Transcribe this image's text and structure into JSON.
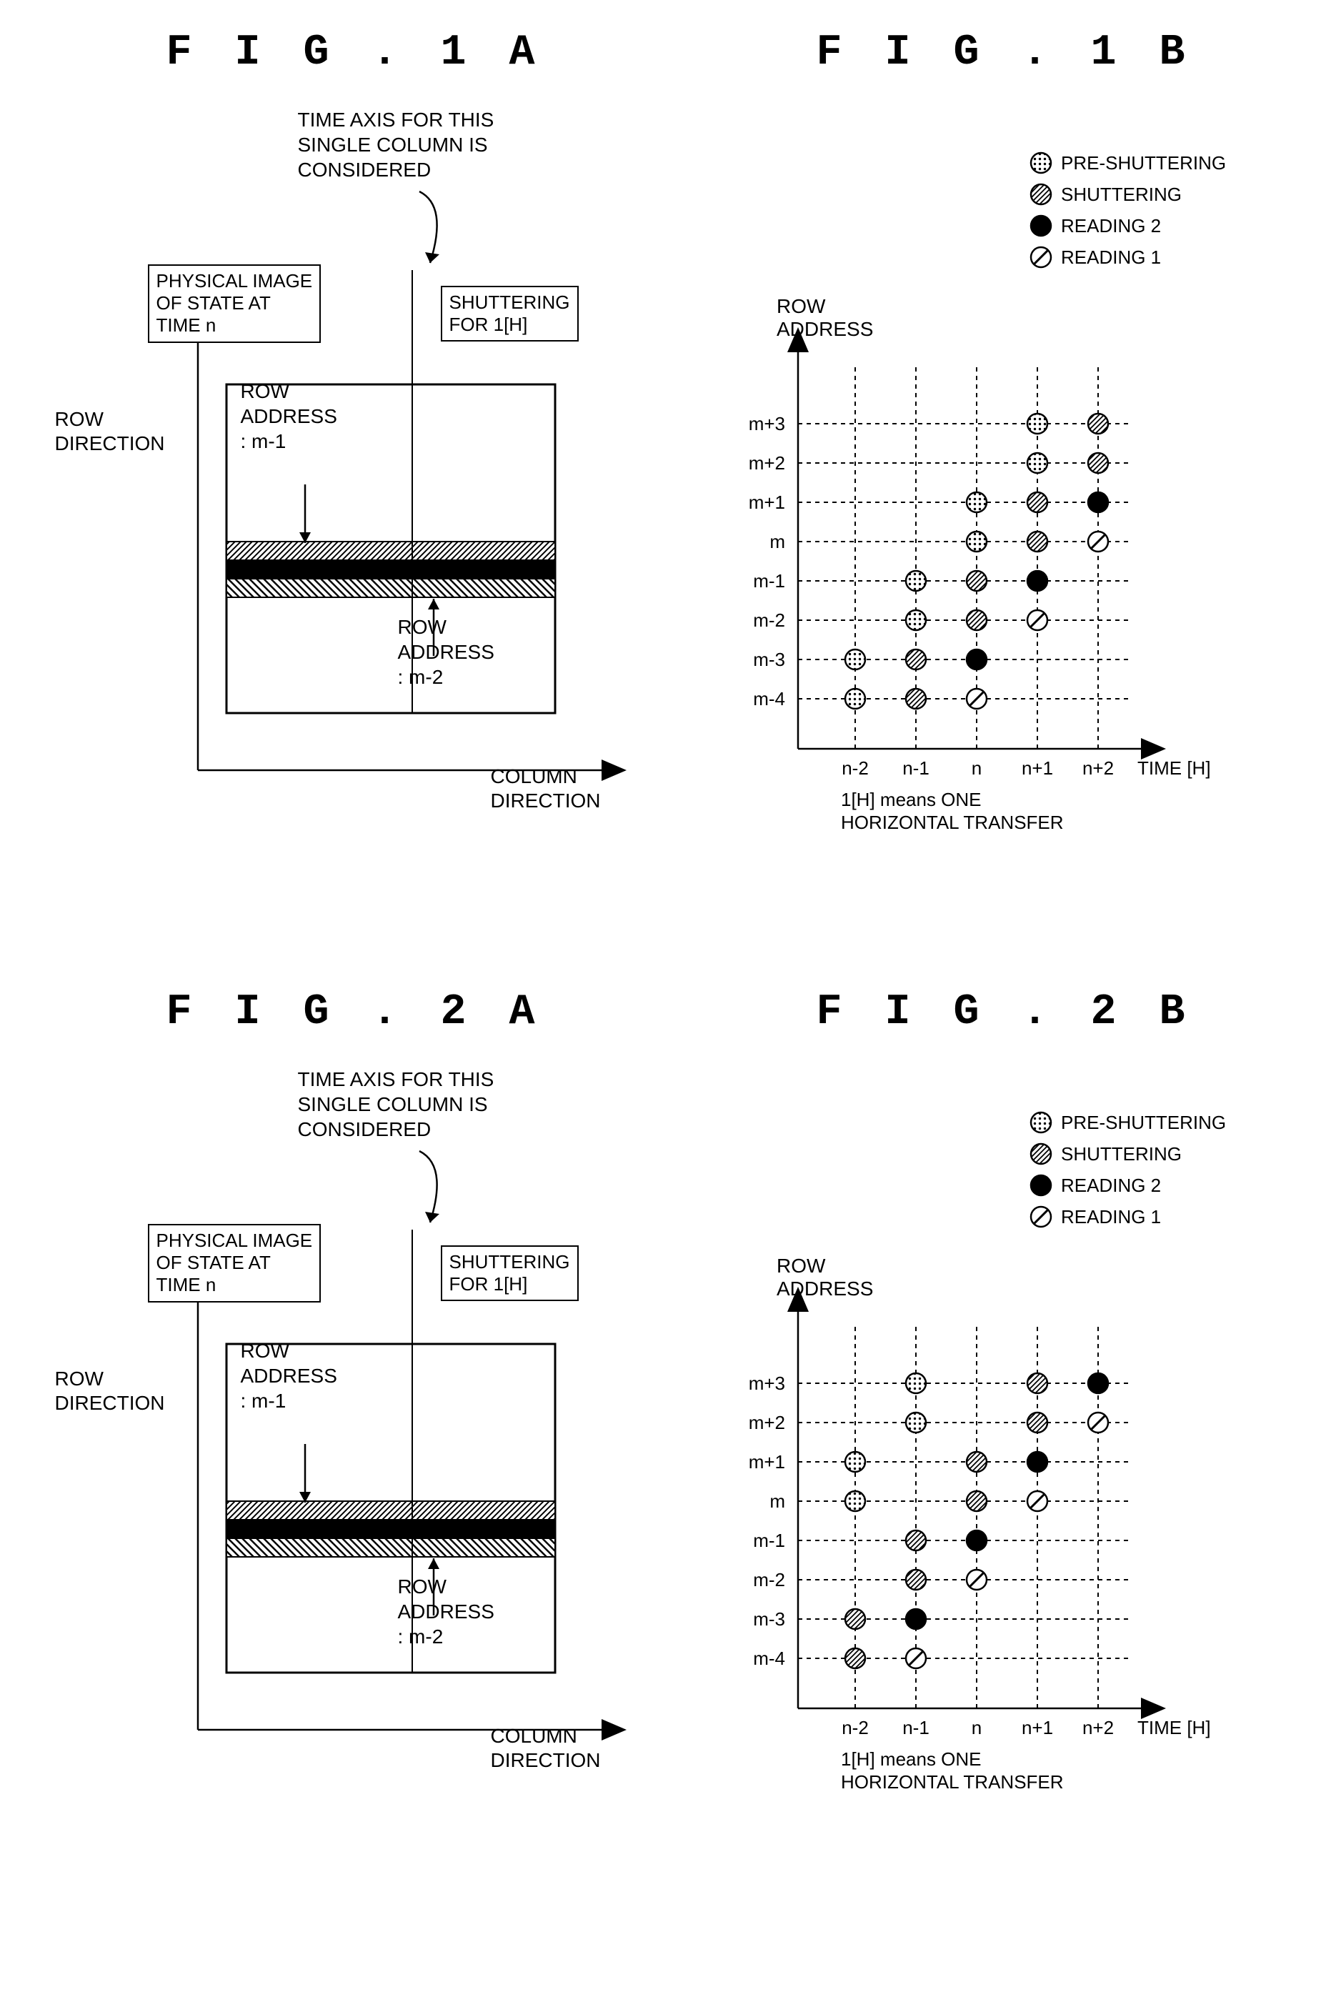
{
  "figures": {
    "fig1a": {
      "title": "F I G . 1 A"
    },
    "fig1b": {
      "title": "F I G . 1 B"
    },
    "fig2a": {
      "title": "F I G . 2 A"
    },
    "fig2b": {
      "title": "F I G . 2 B"
    }
  },
  "annotations": {
    "time_axis_note": "TIME AXIS FOR THIS\nSINGLE COLUMN IS\nCONSIDERED",
    "physical_image": "PHYSICAL IMAGE\nOF STATE AT\nTIME n",
    "shuttering_1h": "SHUTTERING\nFOR 1[H]",
    "row_addr_m1": "ROW\nADDRESS\n: m-1",
    "row_addr_m2": "ROW\nADDRESS\n: m-2",
    "row_direction": "ROW\nDIRECTION",
    "column_direction": "COLUMN\nDIRECTION",
    "row_address": "ROW\nADDRESS",
    "time_h": "TIME [H]",
    "horizontal_note": "1[H] means ONE\nHORIZONTAL TRANSFER"
  },
  "legend": {
    "items": [
      {
        "label": "PRE-SHUTTERING",
        "fill": "dots"
      },
      {
        "label": "SHUTTERING",
        "fill": "diag"
      },
      {
        "label": "READING 2",
        "fill": "black"
      },
      {
        "label": "READING 1",
        "fill": "slash"
      }
    ]
  },
  "y_ticks": [
    "m+3",
    "m+2",
    "m+1",
    "m",
    "m-1",
    "m-2",
    "m-3",
    "m-4"
  ],
  "x_ticks": [
    "n-2",
    "n-1",
    "n",
    "n+1",
    "n+2"
  ],
  "colors": {
    "black": "#000000",
    "white": "#ffffff",
    "stroke_width": 2.5
  },
  "chart1b": {
    "x_spacing": 85,
    "y_spacing": 55,
    "points": [
      {
        "x": "n-2",
        "y": "m-4",
        "type": "dots"
      },
      {
        "x": "n-2",
        "y": "m-3",
        "type": "dots"
      },
      {
        "x": "n-1",
        "y": "m-4",
        "type": "diag"
      },
      {
        "x": "n-1",
        "y": "m-3",
        "type": "diag"
      },
      {
        "x": "n-1",
        "y": "m-2",
        "type": "dots"
      },
      {
        "x": "n-1",
        "y": "m-1",
        "type": "dots"
      },
      {
        "x": "n",
        "y": "m-4",
        "type": "slash"
      },
      {
        "x": "n",
        "y": "m-3",
        "type": "black"
      },
      {
        "x": "n",
        "y": "m-2",
        "type": "diag"
      },
      {
        "x": "n",
        "y": "m-1",
        "type": "diag"
      },
      {
        "x": "n",
        "y": "m",
        "type": "dots"
      },
      {
        "x": "n",
        "y": "m+1",
        "type": "dots"
      },
      {
        "x": "n+1",
        "y": "m-2",
        "type": "slash"
      },
      {
        "x": "n+1",
        "y": "m-1",
        "type": "black"
      },
      {
        "x": "n+1",
        "y": "m",
        "type": "diag"
      },
      {
        "x": "n+1",
        "y": "m+1",
        "type": "diag"
      },
      {
        "x": "n+1",
        "y": "m+2",
        "type": "dots"
      },
      {
        "x": "n+1",
        "y": "m+3",
        "type": "dots"
      },
      {
        "x": "n+2",
        "y": "m",
        "type": "slash"
      },
      {
        "x": "n+2",
        "y": "m+1",
        "type": "black"
      },
      {
        "x": "n+2",
        "y": "m+2",
        "type": "diag"
      },
      {
        "x": "n+2",
        "y": "m+3",
        "type": "diag"
      }
    ]
  },
  "chart2b": {
    "x_spacing": 85,
    "y_spacing": 55,
    "points": [
      {
        "x": "n-2",
        "y": "m-4",
        "type": "diag"
      },
      {
        "x": "n-2",
        "y": "m-3",
        "type": "diag"
      },
      {
        "x": "n-2",
        "y": "m",
        "type": "dots"
      },
      {
        "x": "n-2",
        "y": "m+1",
        "type": "dots"
      },
      {
        "x": "n-1",
        "y": "m-4",
        "type": "slash"
      },
      {
        "x": "n-1",
        "y": "m-3",
        "type": "black"
      },
      {
        "x": "n-1",
        "y": "m-2",
        "type": "diag"
      },
      {
        "x": "n-1",
        "y": "m-1",
        "type": "diag"
      },
      {
        "x": "n-1",
        "y": "m+2",
        "type": "dots"
      },
      {
        "x": "n-1",
        "y": "m+3",
        "type": "dots"
      },
      {
        "x": "n",
        "y": "m-2",
        "type": "slash"
      },
      {
        "x": "n",
        "y": "m-1",
        "type": "black"
      },
      {
        "x": "n",
        "y": "m",
        "type": "diag"
      },
      {
        "x": "n",
        "y": "m+1",
        "type": "diag"
      },
      {
        "x": "n+1",
        "y": "m",
        "type": "slash"
      },
      {
        "x": "n+1",
        "y": "m+1",
        "type": "black"
      },
      {
        "x": "n+1",
        "y": "m+2",
        "type": "diag"
      },
      {
        "x": "n+1",
        "y": "m+3",
        "type": "diag"
      },
      {
        "x": "n+2",
        "y": "m+2",
        "type": "slash"
      },
      {
        "x": "n+2",
        "y": "m+3",
        "type": "black"
      }
    ]
  },
  "marker_radius": 14,
  "grid": {
    "dash": "6,6",
    "color": "#000000",
    "width": 2
  },
  "physical": {
    "sensor_w": 460,
    "sensor_h": 460,
    "band_y": 240,
    "band_h": 26
  }
}
